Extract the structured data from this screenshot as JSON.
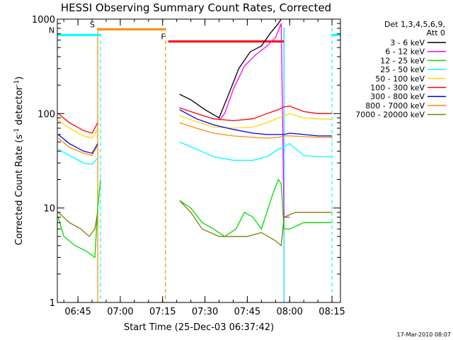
{
  "chart_data": {
    "type": "line",
    "title": "HESSI Observing Summary Count Rates, Corrected",
    "xlabel": "Start Time (25-Dec-03 06:37:42)",
    "ylabel_main": "Corrected Count Rate (s",
    "ylabel_sup1": "-1",
    "ylabel_mid": " detector",
    "ylabel_sup2": "-1",
    "ylabel_end": ")",
    "yscale": "log",
    "xlim": [
      "06:37:42",
      "08:18:00"
    ],
    "ylim": [
      1,
      1000
    ],
    "x_ticks": [
      "06:45",
      "07:00",
      "07:15",
      "07:30",
      "07:45",
      "08:00",
      "08:15"
    ],
    "y_ticks": [
      "1",
      "10",
      "100",
      "1000"
    ],
    "legend_header": [
      "Det 1,3,4,5,6,9,",
      "Att 0"
    ],
    "footer": "17-Mar-2010 08:07",
    "series": [
      {
        "name": "3 - 6 keV",
        "color": "#000000",
        "x": [
          "07:21",
          "07:25",
          "07:30",
          "07:35",
          "07:38",
          "07:42",
          "07:46",
          "07:50",
          "07:53",
          "07:56",
          "07:57"
        ],
        "y": [
          160,
          140,
          110,
          90,
          150,
          300,
          450,
          520,
          700,
          900,
          1000
        ]
      },
      {
        "name": "6 - 12 keV",
        "color": "#ff00ff",
        "x": [
          "07:35",
          "07:37",
          "07:40",
          "07:44",
          "07:48",
          "07:52",
          "07:55",
          "07:57",
          "07:58",
          "08:00"
        ],
        "y": [
          85,
          100,
          180,
          320,
          420,
          520,
          640,
          900,
          8,
          8
        ]
      },
      {
        "name": "12 - 25 keV",
        "color": "#00dd00",
        "x": [
          "06:38",
          "06:40",
          "06:44",
          "06:48",
          "06:51",
          "06:52",
          "06:53",
          "07:21",
          "07:25",
          "07:29",
          "07:33",
          "07:37",
          "07:41",
          "07:44",
          "07:47",
          "07:50",
          "07:54",
          "07:56",
          "07:57",
          "07:58",
          "08:00",
          "08:05",
          "08:15"
        ],
        "y": [
          8,
          5,
          4,
          3.5,
          3,
          10,
          20,
          12,
          10,
          7,
          6,
          5,
          6,
          9,
          8,
          6,
          14,
          20,
          18,
          6,
          6,
          7,
          7
        ]
      },
      {
        "name": "25 - 50 keV",
        "color": "#00ffff",
        "x": [
          "06:38",
          "06:42",
          "06:47",
          "06:50",
          "06:52",
          "07:21",
          "07:27",
          "07:33",
          "07:40",
          "07:47",
          "07:52",
          "07:56",
          "07:58",
          "08:00",
          "08:05",
          "08:10",
          "08:15"
        ],
        "y": [
          42,
          36,
          30,
          29,
          34,
          50,
          42,
          35,
          32,
          32,
          35,
          42,
          44,
          48,
          36,
          35,
          35
        ]
      },
      {
        "name": "50 - 100 keV",
        "color": "#ffd700",
        "x": [
          "06:38",
          "06:42",
          "06:47",
          "06:50",
          "06:52",
          "07:21",
          "07:27",
          "07:33",
          "07:40",
          "07:47",
          "07:52",
          "07:56",
          "07:58",
          "08:00",
          "08:05",
          "08:10",
          "08:15"
        ],
        "y": [
          85,
          70,
          58,
          55,
          68,
          95,
          82,
          72,
          70,
          72,
          80,
          90,
          95,
          100,
          90,
          88,
          87
        ]
      },
      {
        "name": "100 - 300 keV",
        "color": "#ff0000",
        "x": [
          "06:38",
          "06:42",
          "06:47",
          "06:50",
          "06:52",
          "07:21",
          "07:27",
          "07:33",
          "07:40",
          "07:47",
          "07:52",
          "07:56",
          "07:58",
          "08:00",
          "08:05",
          "08:10",
          "08:15"
        ],
        "y": [
          100,
          80,
          66,
          62,
          80,
          115,
          100,
          88,
          84,
          88,
          100,
          110,
          118,
          120,
          105,
          100,
          100
        ]
      },
      {
        "name": "300 - 800 keV",
        "color": "#0000ff",
        "x": [
          "06:38",
          "06:42",
          "06:47",
          "06:50",
          "06:52",
          "07:21",
          "07:27",
          "07:33",
          "07:40",
          "07:47",
          "07:52",
          "07:56",
          "07:58",
          "08:00",
          "08:05",
          "08:10",
          "08:15"
        ],
        "y": [
          60,
          48,
          40,
          38,
          48,
          110,
          88,
          76,
          68,
          62,
          60,
          60,
          60,
          62,
          60,
          58,
          58
        ]
      },
      {
        "name": "800 - 7000 keV",
        "color": "#ff8c00",
        "x": [
          "06:38",
          "06:42",
          "06:47",
          "06:50",
          "06:52",
          "07:21",
          "07:27",
          "07:33",
          "07:40",
          "07:47",
          "07:52",
          "07:56",
          "07:58",
          "08:00",
          "08:05",
          "08:10",
          "08:15"
        ],
        "y": [
          55,
          44,
          38,
          36,
          46,
          80,
          70,
          62,
          58,
          56,
          55,
          56,
          58,
          58,
          57,
          56,
          56
        ]
      },
      {
        "name": "7000 - 20000 keV",
        "color": "#808000",
        "x": [
          "06:38",
          "06:42",
          "06:46",
          "06:49",
          "06:51",
          "06:52",
          "07:21",
          "07:25",
          "07:29",
          "07:35",
          "07:40",
          "07:45",
          "07:50",
          "07:55",
          "07:57",
          "07:58",
          "08:02",
          "08:06",
          "08:10",
          "08:15"
        ],
        "y": [
          9,
          7,
          6,
          5,
          6,
          9,
          12,
          9,
          6,
          5,
          5,
          5,
          5.5,
          4.5,
          4,
          8,
          9,
          9,
          9,
          9
        ]
      }
    ],
    "observing_bars": [
      {
        "label": "S",
        "color": "#ff8c00",
        "x": [
          "06:52",
          "07:16"
        ],
        "y": 780
      },
      {
        "label": "N",
        "color": "#00ffff",
        "x": [
          "06:37:42",
          "06:53"
        ],
        "y": 680
      },
      {
        "label": "F",
        "color": "#ff0000",
        "x": [
          "07:17",
          "07:58"
        ],
        "y": 580
      },
      {
        "label": "",
        "color": "#00ffff",
        "x": [
          "08:15",
          "08:18"
        ],
        "y": 680
      }
    ],
    "markers": [
      {
        "x": "06:52",
        "color": "#ff8c00",
        "style": "solid"
      },
      {
        "x": "06:53",
        "color": "#00ffff",
        "style": "dashed"
      },
      {
        "x": "07:16",
        "color": "#ff8c00",
        "style": "dashed"
      },
      {
        "x": "07:58",
        "color": "#ff00ff",
        "style": "solid"
      },
      {
        "x": "07:58",
        "color": "#00ffff",
        "style": "solid"
      },
      {
        "x": "08:15",
        "color": "#00ffff",
        "style": "dashed"
      }
    ]
  }
}
